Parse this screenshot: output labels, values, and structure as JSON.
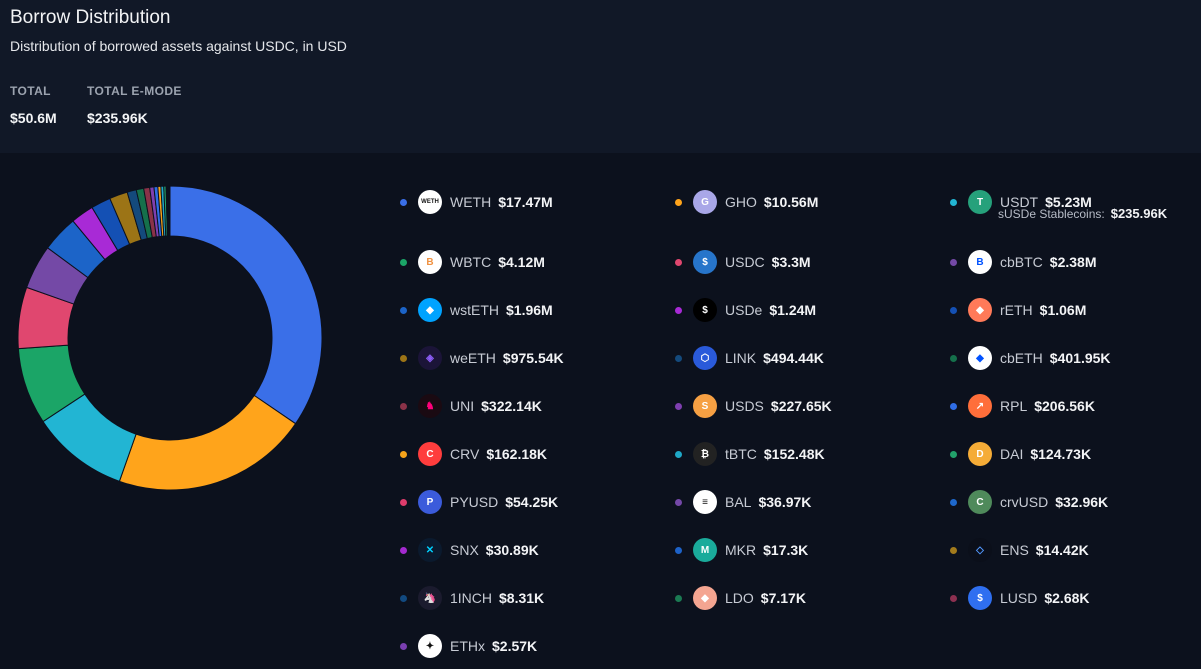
{
  "header": {
    "title": "Borrow Distribution",
    "subtitle": "Distribution of borrowed assets against USDC, in USD",
    "stats": [
      {
        "label": "TOTAL",
        "value": "$50.6M"
      },
      {
        "label": "TOTAL E-MODE",
        "value": "$235.96K"
      }
    ]
  },
  "emode_note": {
    "label": "sUSDe Stablecoins:",
    "value": "$235.96K"
  },
  "chart_data": {
    "type": "pie",
    "variant": "donut",
    "categories": [
      "WETH",
      "GHO",
      "USDT",
      "WBTC",
      "USDC",
      "cbBTC",
      "wstETH",
      "USDe",
      "rETH",
      "weETH",
      "LINK",
      "cbETH",
      "UNI",
      "USDS",
      "RPL",
      "CRV",
      "tBTC",
      "DAI",
      "PYUSD",
      "BAL",
      "crvUSD",
      "SNX",
      "MKR",
      "ENS",
      "1INCH",
      "LDO",
      "LUSD",
      "ETHx"
    ],
    "values": [
      17.47,
      10.56,
      5.23,
      4.12,
      3.3,
      2.38,
      1.96,
      1.24,
      1.06,
      0.97554,
      0.49444,
      0.40195,
      0.32214,
      0.22765,
      0.20656,
      0.16218,
      0.15248,
      0.12473,
      0.05425,
      0.03697,
      0.03296,
      0.03089,
      0.0173,
      0.01442,
      0.00831,
      0.00717,
      0.00268,
      0.00257
    ],
    "value_labels": [
      "$17.47M",
      "$10.56M",
      "$5.23M",
      "$4.12M",
      "$3.3M",
      "$2.38M",
      "$1.96M",
      "$1.24M",
      "$1.06M",
      "$975.54K",
      "$494.44K",
      "$401.95K",
      "$322.14K",
      "$227.65K",
      "$206.56K",
      "$162.18K",
      "$152.48K",
      "$124.73K",
      "$54.25K",
      "$36.97K",
      "$32.96K",
      "$30.89K",
      "$17.3K",
      "$14.42K",
      "$8.31K",
      "$7.17K",
      "$2.68K",
      "$2.57K"
    ],
    "colors": [
      "#3a6fe8",
      "#ffa41b",
      "#22b5d3",
      "#1ba567",
      "#e0476f",
      "#7449a6",
      "#1c64c8",
      "#a82ad6",
      "#1450b4",
      "#9c7416",
      "#144a7c",
      "#15704b",
      "#8a3248",
      "#7f3fb0",
      "#2f6de6",
      "#f5a31a",
      "#1fa8c7",
      "#22a26b",
      "#de3c6c",
      "#7448a8",
      "#1e68cc",
      "#a42ad0",
      "#1d62c8",
      "#a37b1c",
      "#124a80",
      "#1b7a53",
      "#8c3050",
      "#7a3fb0"
    ],
    "legend_placement": "right"
  },
  "icons": [
    "weth-icon",
    "gho-icon",
    "usdt-icon",
    "wbtc-icon",
    "usdc-icon",
    "cbbtc-icon",
    "wsteth-icon",
    "usde-icon",
    "reth-icon",
    "weeth-icon",
    "link-icon",
    "cbeth-icon",
    "uni-icon",
    "usds-icon",
    "rpl-icon",
    "crv-icon",
    "tbtc-icon",
    "dai-icon",
    "pyusd-icon",
    "bal-icon",
    "crvusd-icon",
    "snx-icon",
    "mkr-icon",
    "ens-icon",
    "1inch-icon",
    "ldo-icon",
    "lusd-icon",
    "ethx-icon"
  ]
}
